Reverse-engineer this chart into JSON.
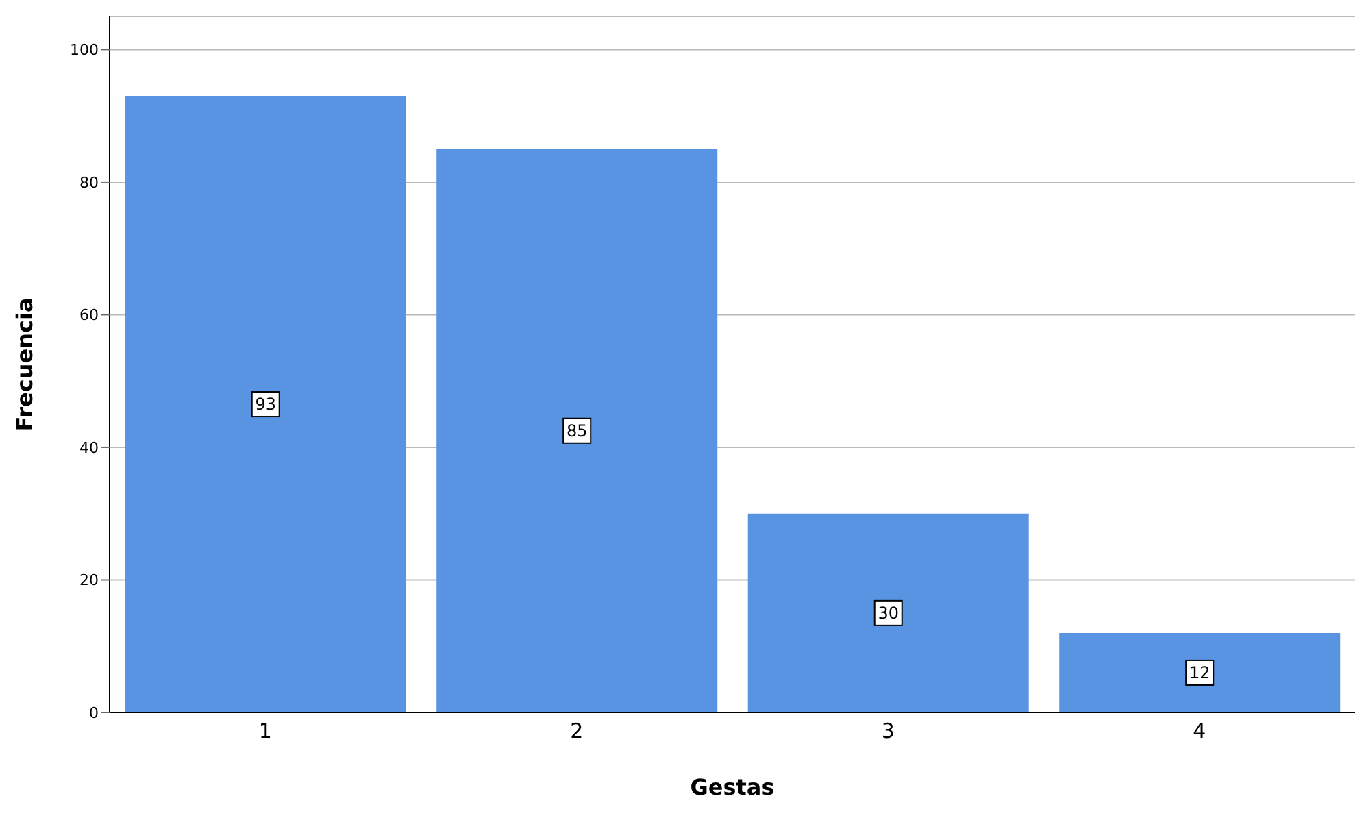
{
  "chart_data": {
    "type": "bar",
    "xlabel": "Gestas",
    "ylabel": "Frecuencia",
    "categories": [
      "1",
      "2",
      "3",
      "4"
    ],
    "values": [
      93,
      85,
      30,
      12
    ],
    "color": "#5894e2",
    "ylim": [
      0,
      105
    ],
    "yticks": [
      0,
      20,
      40,
      60,
      80,
      100
    ],
    "grid": "y",
    "data_labels": true
  }
}
